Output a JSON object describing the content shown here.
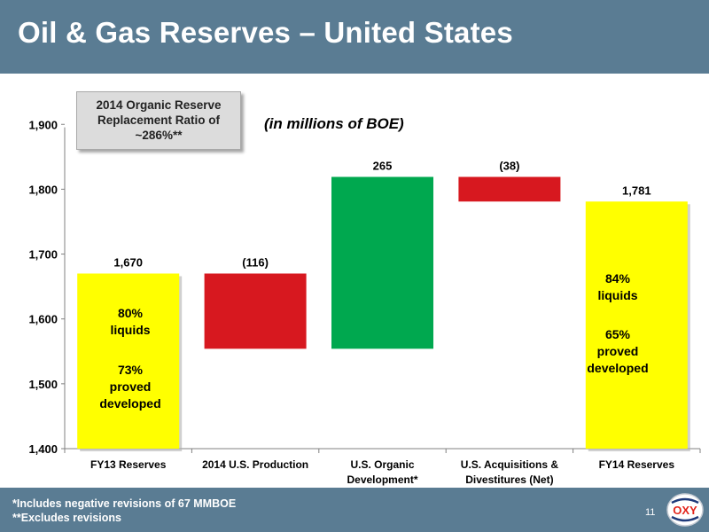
{
  "header": {
    "title": "Oil & Gas Reserves – United States"
  },
  "callout": {
    "lines": [
      "2014 Organic Reserve",
      "Replacement Ratio of",
      "~286%**"
    ]
  },
  "unit_note": "(in millions of BOE)",
  "bar_notes": {
    "fy13_liquids": [
      "80%",
      "liquids"
    ],
    "fy13_proved": [
      "73%",
      "proved",
      "developed"
    ],
    "fy14_liquids": [
      "84%",
      "liquids"
    ],
    "fy14_proved": [
      "65%",
      "proved",
      "developed"
    ]
  },
  "footer": {
    "notes": [
      "*Includes negative revisions of 67 MMBOE",
      "**Excludes revisions"
    ],
    "page": "11"
  },
  "logo": {
    "text": "OXY"
  },
  "colors": {
    "header_bg": "#5a7c93",
    "total": "#ffff00",
    "decrease": "#d7181f",
    "increase": "#00a84f",
    "logo_red": "#e2231a",
    "logo_blue": "#1f3a7a"
  },
  "chart_data": {
    "type": "bar",
    "subtype": "waterfall",
    "categories": [
      [
        "FY13 Reserves"
      ],
      [
        "2014 U.S. Production"
      ],
      [
        "U.S. Organic",
        "Development*"
      ],
      [
        "U.S. Acquisitions &",
        "Divestitures (Net)"
      ],
      [
        "FY14 Reserves"
      ]
    ],
    "bars": [
      {
        "kind": "total",
        "start": 1400,
        "end": 1670,
        "label": "1,670"
      },
      {
        "kind": "decrease",
        "start": 1670,
        "end": 1554,
        "label": "(116)"
      },
      {
        "kind": "increase",
        "start": 1554,
        "end": 1819,
        "label": "265"
      },
      {
        "kind": "decrease",
        "start": 1819,
        "end": 1781,
        "label": "(38)"
      },
      {
        "kind": "total",
        "start": 1400,
        "end": 1781,
        "label": "1,781"
      }
    ],
    "ylim": [
      1400,
      1950
    ],
    "yticks": [
      1400,
      1500,
      1600,
      1700,
      1800,
      1900
    ],
    "ytick_labels": [
      "1,400",
      "1,500",
      "1,600",
      "1,700",
      "1,800",
      "1,900"
    ],
    "grid": false,
    "legend": "none",
    "xlabel": "",
    "ylabel": ""
  }
}
